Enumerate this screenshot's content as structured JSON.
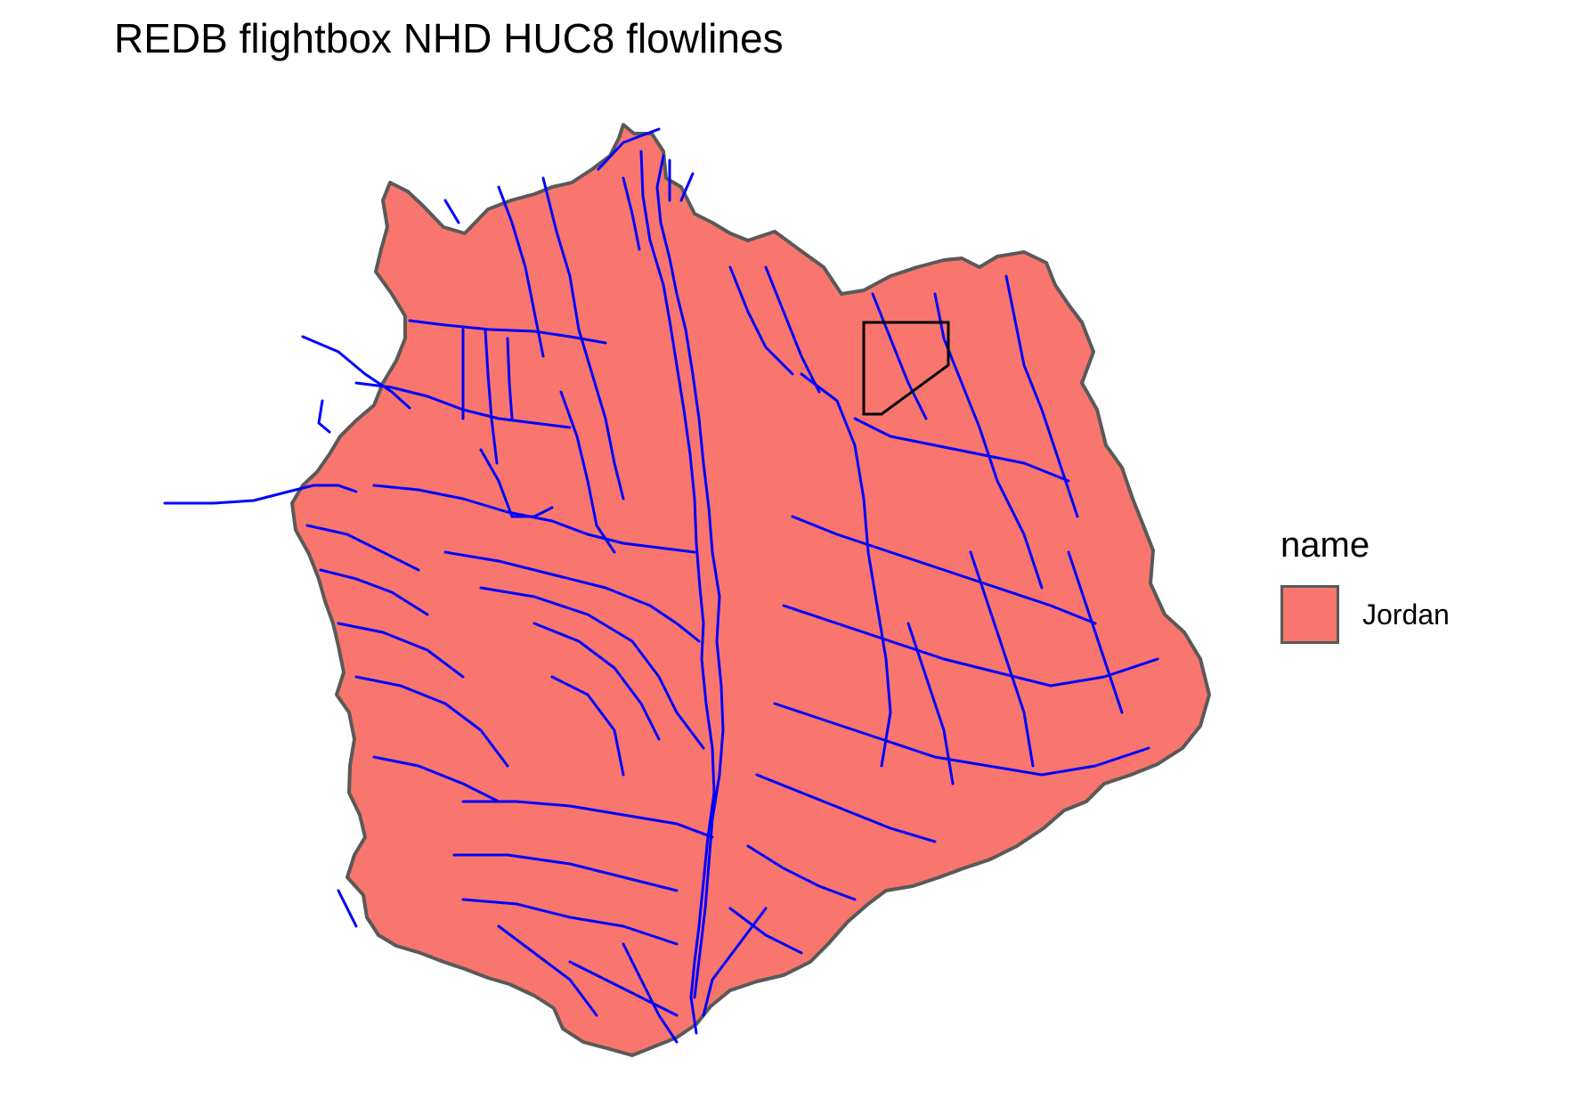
{
  "title": "REDB flightbox NHD HUC8 flowlines",
  "legend": {
    "title": "name",
    "items": [
      {
        "label": "Jordan",
        "color": "#F8766D"
      }
    ]
  },
  "colors": {
    "watershed_fill": "#F8766D",
    "watershed_border": "#595959",
    "flowline": "#0000FF",
    "flightbox_outline": "#000000",
    "background": "#FFFFFF"
  }
}
